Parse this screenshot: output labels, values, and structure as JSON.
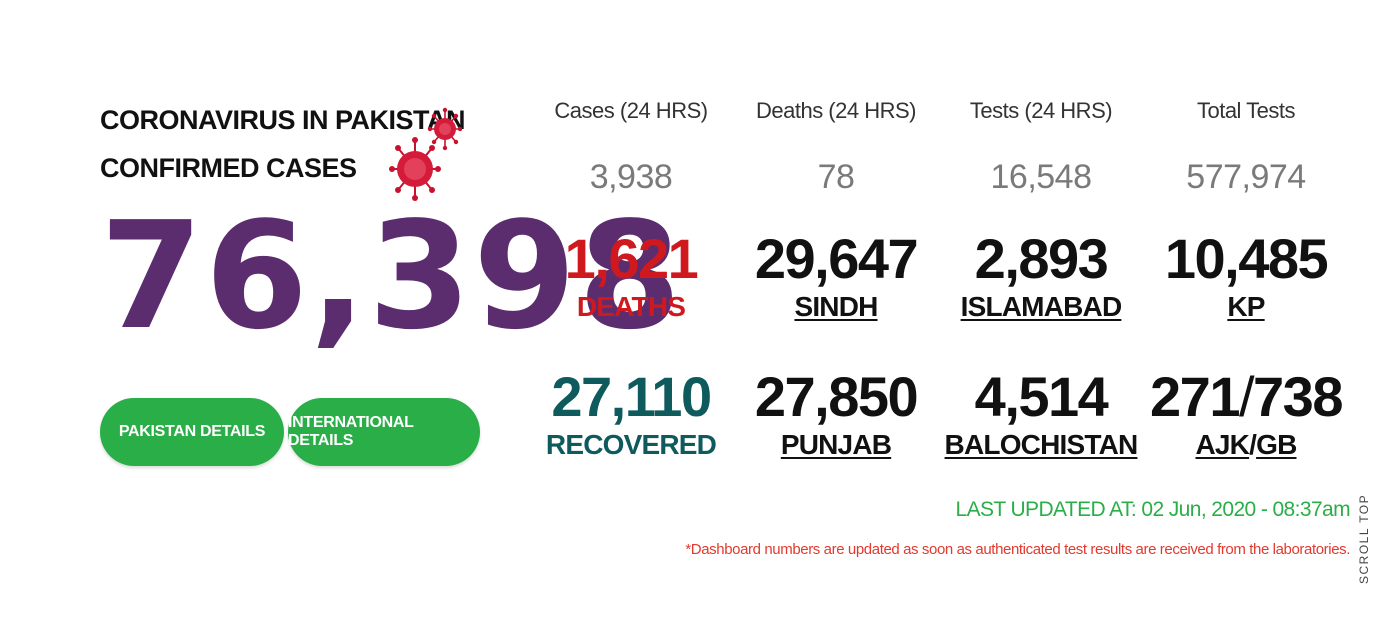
{
  "header": {
    "line1": "CORONAVIRUS IN PAKISTAN",
    "line2": "CONFIRMED CASES",
    "confirmed_cases": "76,398"
  },
  "buttons": {
    "pakistan_details": "PAKISTAN DETAILS",
    "international_details": "INTERNATIONAL DETAILS"
  },
  "summary": [
    {
      "label": "Cases (24 HRS)",
      "value": "3,938"
    },
    {
      "label": "Deaths (24 HRS)",
      "value": "78"
    },
    {
      "label": "Tests (24 HRS)",
      "value": "16,548"
    },
    {
      "label": "Total Tests",
      "value": "577,974"
    }
  ],
  "stats": {
    "deaths": {
      "value": "1,621",
      "label": "DEATHS"
    },
    "recovered": {
      "value": "27,110",
      "label": "RECOVERED"
    },
    "sindh": {
      "value": "29,647",
      "label": "SINDH"
    },
    "islamabad": {
      "value": "2,893",
      "label": "ISLAMABAD"
    },
    "kp": {
      "value": "10,485",
      "label": "KP"
    },
    "punjab": {
      "value": "27,850",
      "label": "PUNJAB"
    },
    "balochistan": {
      "value": "4,514",
      "label": "BALOCHISTAN"
    },
    "ajk": {
      "value": "271",
      "label": "AJK"
    },
    "gb": {
      "value": "738",
      "label": "GB"
    },
    "separator": "/"
  },
  "footer": {
    "last_updated": "LAST UPDATED AT: 02 Jun, 2020 - 08:37am",
    "disclaimer": "*Dashboard numbers are updated as soon as authenticated test results are received from the laboratories.",
    "scroll_top": "SCROLL TOP"
  },
  "colors": {
    "primary_purple": "#5b2d6e",
    "button_green": "#2aae48",
    "deaths_red": "#d0191f",
    "recovered_teal": "#0e5a5c",
    "disclaimer_red": "#e23a2f"
  },
  "icons": [
    "coronavirus-icon"
  ]
}
